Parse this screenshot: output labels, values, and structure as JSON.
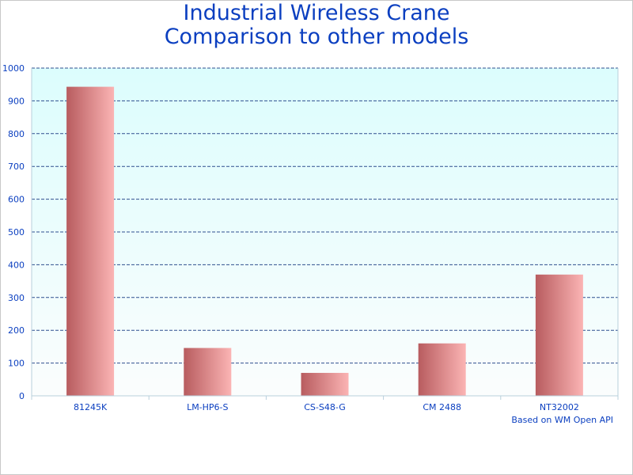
{
  "chart_data": {
    "type": "bar",
    "title_lines": [
      "Industrial Wireless Crane",
      "Comparison to other models"
    ],
    "categories": [
      "81245K",
      "LM-HP6-S",
      "CS-S48-G",
      "CM 2488",
      "NT32002"
    ],
    "values": [
      943,
      146,
      70,
      160,
      370
    ],
    "ylim": [
      0,
      1000
    ],
    "yticks": [
      0,
      100,
      200,
      300,
      400,
      500,
      600,
      700,
      800,
      900,
      1000
    ],
    "grid": true,
    "xlabel": "",
    "ylabel": "",
    "credit": "Based on WM Open API"
  },
  "colors": {
    "title": "#0b3fc0",
    "bar_dark": "#b85c5f",
    "bar_light": "#fbb4b4",
    "plot_bg_top": "#dcfdfd",
    "plot_bg_bottom": "#fbfdfd",
    "grid": "#2f4f8f",
    "axis": "#b8d0dc"
  }
}
